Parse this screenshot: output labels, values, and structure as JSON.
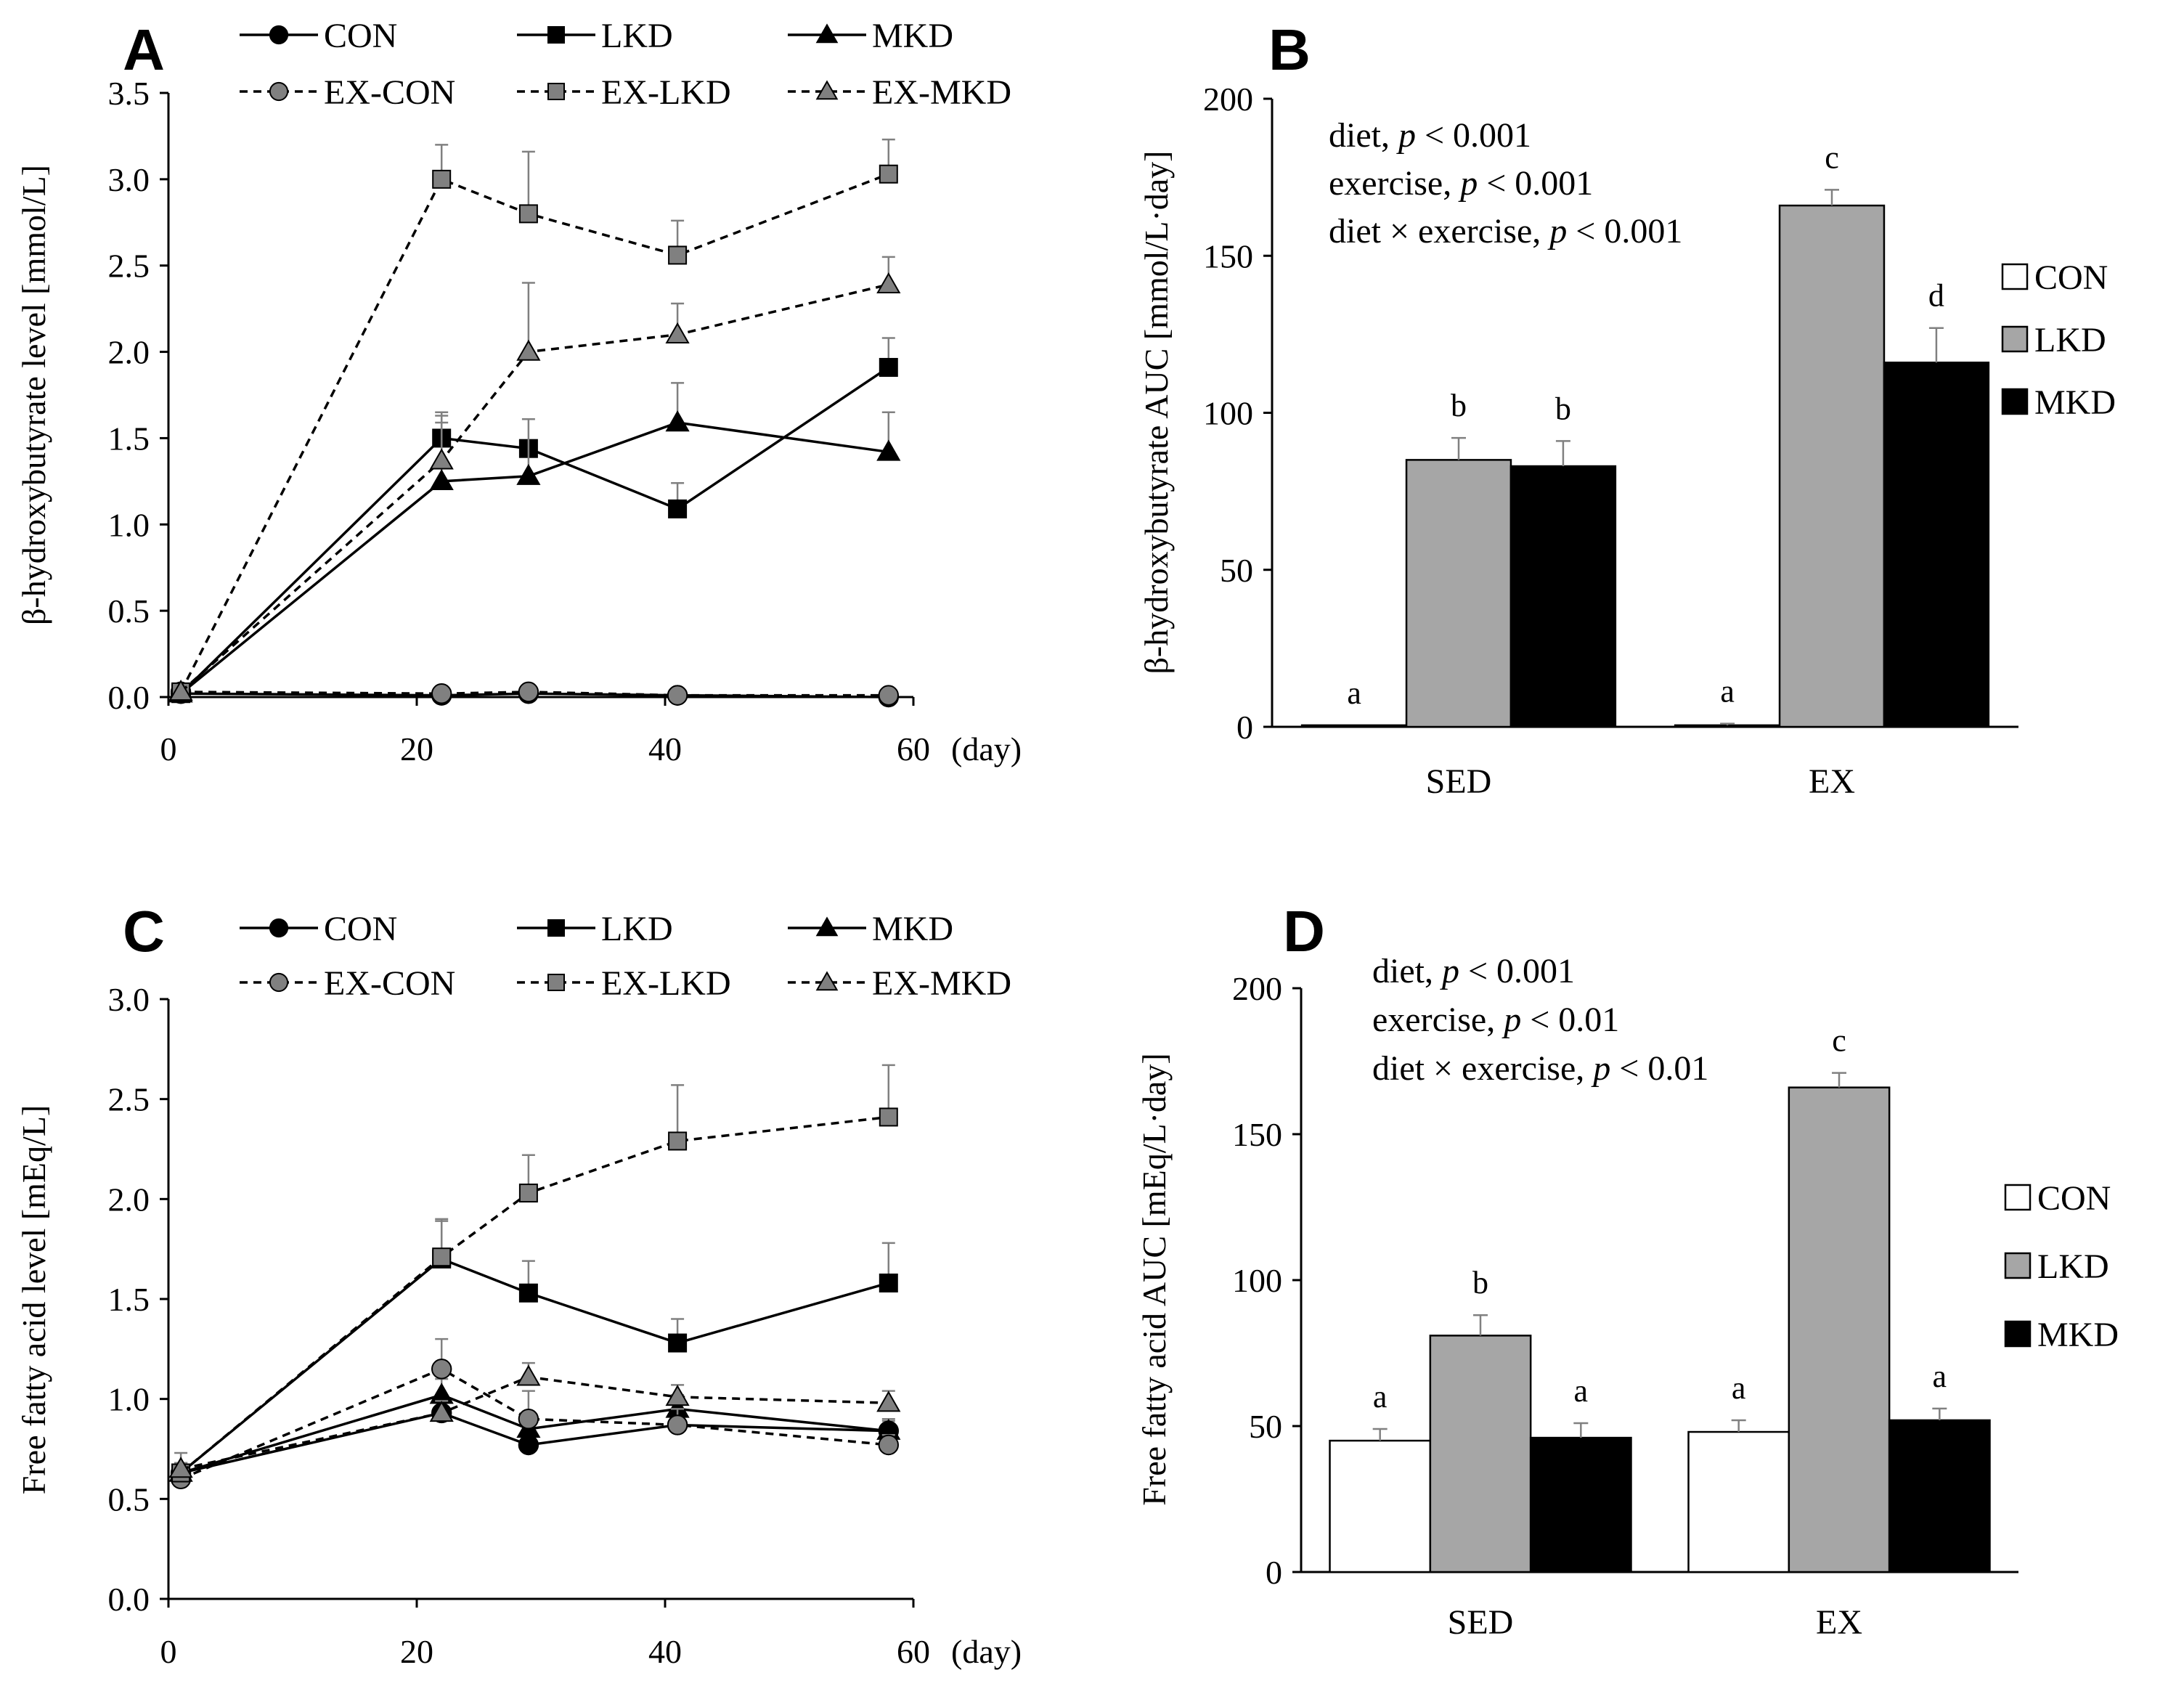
{
  "chart_data": [
    {
      "panel": "A",
      "type": "line",
      "ylabel": "β-hydroxybutyrate level [mmol/L]",
      "xlabel": "(day)",
      "xlim": [
        0,
        60
      ],
      "ylim": [
        0,
        3.5
      ],
      "xticks": [
        "0",
        "20",
        "40",
        "60"
      ],
      "yticks": [
        "0.0",
        "0.5",
        "1.0",
        "1.5",
        "2.0",
        "2.5",
        "3.0",
        "3.5"
      ],
      "x": [
        1,
        22,
        29,
        41,
        58
      ],
      "series": [
        {
          "name": "CON",
          "style": "solid",
          "marker": "circle",
          "fill": "#000000",
          "values": [
            0.02,
            0.01,
            0.02,
            0.01,
            0.0
          ],
          "err": [
            0.0,
            0.0,
            0.0,
            0.0,
            0.0
          ]
        },
        {
          "name": "LKD",
          "style": "solid",
          "marker": "square",
          "fill": "#000000",
          "values": [
            0.02,
            1.5,
            1.44,
            1.09,
            1.91
          ],
          "err": [
            0.0,
            0.15,
            0.0,
            0.15,
            0.17
          ]
        },
        {
          "name": "MKD",
          "style": "solid",
          "marker": "triangle",
          "fill": "#000000",
          "values": [
            0.02,
            1.25,
            1.28,
            1.59,
            1.42
          ],
          "err": [
            0.0,
            0.38,
            0.33,
            0.23,
            0.23
          ]
        },
        {
          "name": "EX-CON",
          "style": "dashed",
          "marker": "circle",
          "fill": "#808080",
          "values": [
            0.03,
            0.02,
            0.03,
            0.01,
            0.01
          ],
          "err": [
            0.0,
            0.0,
            0.0,
            0.0,
            0.0
          ]
        },
        {
          "name": "EX-LKD",
          "style": "dashed",
          "marker": "square",
          "fill": "#808080",
          "values": [
            0.03,
            3.0,
            2.8,
            2.56,
            3.03
          ],
          "err": [
            0.0,
            0.2,
            0.36,
            0.2,
            0.2
          ]
        },
        {
          "name": "EX-MKD",
          "style": "dashed",
          "marker": "triangle",
          "fill": "#808080",
          "values": [
            0.03,
            1.37,
            2.0,
            2.1,
            2.39
          ],
          "err": [
            0.0,
            0.22,
            0.4,
            0.18,
            0.16
          ]
        }
      ]
    },
    {
      "panel": "B",
      "type": "bar",
      "ylabel": "β-hydroxybutyrate AUC [mmol/L·day]",
      "ylim": [
        0,
        200
      ],
      "yticks": [
        "0",
        "50",
        "100",
        "150",
        "200"
      ],
      "categories": [
        "SED",
        "EX"
      ],
      "series": [
        {
          "name": "CON",
          "color": "#ffffff",
          "values": [
            0.5,
            0.5
          ],
          "err": [
            0,
            0.5
          ],
          "sig": [
            "a",
            "a"
          ]
        },
        {
          "name": "LKD",
          "color": "#a6a6a6",
          "values": [
            85,
            166
          ],
          "err": [
            7,
            5
          ],
          "sig": [
            "b",
            "c"
          ]
        },
        {
          "name": "MKD",
          "color": "#000000",
          "values": [
            83,
            116
          ],
          "err": [
            8,
            11
          ],
          "sig": [
            "b",
            "d"
          ]
        }
      ],
      "stats": [
        {
          "label": "diet, ",
          "p": "p",
          "rest": " < 0.001"
        },
        {
          "label": "exercise, ",
          "p": "p",
          "rest": " < 0.001"
        },
        {
          "label": "diet × exercise, ",
          "p": "p",
          "rest": " < 0.001"
        }
      ]
    },
    {
      "panel": "C",
      "type": "line",
      "ylabel": "Free fatty acid level [mEq/L]",
      "xlabel": "(day)",
      "xlim": [
        0,
        60
      ],
      "ylim": [
        0,
        3.0
      ],
      "xticks": [
        "0",
        "20",
        "40",
        "60"
      ],
      "yticks": [
        "0.0",
        "0.5",
        "1.0",
        "1.5",
        "2.0",
        "2.5",
        "3.0"
      ],
      "x": [
        1,
        22,
        29,
        41,
        58
      ],
      "series": [
        {
          "name": "CON",
          "style": "solid",
          "marker": "circle",
          "fill": "#000000",
          "values": [
            0.63,
            0.93,
            0.77,
            0.87,
            0.84
          ],
          "err": [
            0.05,
            0.05,
            0.05,
            0.05,
            0.05
          ]
        },
        {
          "name": "LKD",
          "style": "solid",
          "marker": "square",
          "fill": "#000000",
          "values": [
            0.63,
            1.7,
            1.53,
            1.28,
            1.58
          ],
          "err": [
            0.05,
            0.19,
            0.16,
            0.12,
            0.2
          ]
        },
        {
          "name": "MKD",
          "style": "solid",
          "marker": "triangle",
          "fill": "#000000",
          "values": [
            0.63,
            1.02,
            0.85,
            0.95,
            0.84
          ],
          "err": [
            0.05,
            0.08,
            0.06,
            0.07,
            0.06
          ]
        },
        {
          "name": "EX-CON",
          "style": "dashed",
          "marker": "circle",
          "fill": "#808080",
          "values": [
            0.6,
            1.15,
            0.9,
            0.87,
            0.77
          ],
          "err": [
            0.05,
            0.15,
            0.14,
            0.08,
            0.05
          ]
        },
        {
          "name": "EX-LKD",
          "style": "dashed",
          "marker": "square",
          "fill": "#808080",
          "values": [
            0.63,
            1.71,
            2.03,
            2.29,
            2.41
          ],
          "err": [
            0.05,
            0.19,
            0.19,
            0.28,
            0.26
          ]
        },
        {
          "name": "EX-MKD",
          "style": "dashed",
          "marker": "triangle",
          "fill": "#808080",
          "values": [
            0.65,
            0.93,
            1.11,
            1.01,
            0.98
          ],
          "err": [
            0.08,
            0.06,
            0.07,
            0.06,
            0.06
          ]
        }
      ]
    },
    {
      "panel": "D",
      "type": "bar",
      "ylabel": "Free fatty acid AUC [mEq/L·day]",
      "ylim": [
        0,
        200
      ],
      "yticks": [
        "0",
        "50",
        "100",
        "150",
        "200"
      ],
      "categories": [
        "SED",
        "EX"
      ],
      "series": [
        {
          "name": "CON",
          "color": "#ffffff",
          "values": [
            45,
            48
          ],
          "err": [
            4,
            4
          ],
          "sig": [
            "a",
            "a"
          ]
        },
        {
          "name": "LKD",
          "color": "#a6a6a6",
          "values": [
            81,
            166
          ],
          "err": [
            7,
            5
          ],
          "sig": [
            "b",
            "c"
          ]
        },
        {
          "name": "MKD",
          "color": "#000000",
          "values": [
            46,
            52
          ],
          "err": [
            5,
            4
          ],
          "sig": [
            "a",
            "a"
          ]
        }
      ],
      "stats": [
        {
          "label": "diet, ",
          "p": "p",
          "rest": " < 0.001"
        },
        {
          "label": "exercise, ",
          "p": "p",
          "rest": " < 0.01"
        },
        {
          "label": "diet × exercise, ",
          "p": "p",
          "rest": " < 0.01"
        }
      ]
    }
  ]
}
